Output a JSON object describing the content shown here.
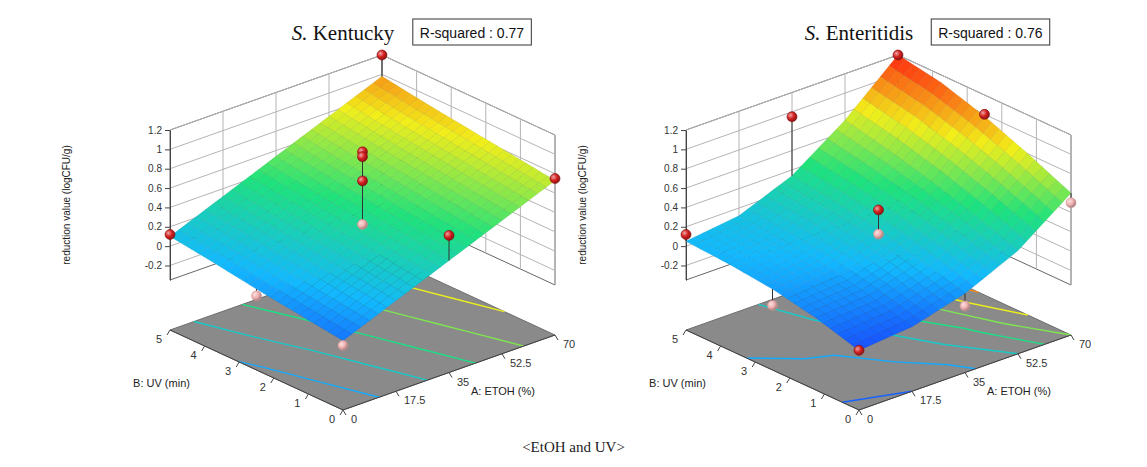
{
  "caption": "<EtOH and UV>",
  "chart_data": [
    {
      "type": "surface",
      "title": "S. Kentucky",
      "annotation": "R-squared : 0.77",
      "x_label": "A: ETOH (%)",
      "y_label": "B: UV (min)",
      "z_label": "reduction value (logCFU/g)",
      "x": [
        0,
        17.5,
        35,
        52.5,
        70
      ],
      "y": [
        0,
        1.25,
        2.5,
        3.75,
        5
      ],
      "z": [
        [
          -0.15,
          0.07,
          0.29,
          0.51,
          0.73
        ],
        [
          -0.09,
          0.13,
          0.35,
          0.57,
          0.79
        ],
        [
          -0.03,
          0.19,
          0.41,
          0.63,
          0.85
        ],
        [
          0.04,
          0.26,
          0.47,
          0.69,
          0.91
        ],
        [
          0.1,
          0.32,
          0.54,
          0.76,
          0.98
        ]
      ],
      "xlim": [
        0,
        70
      ],
      "xticks": [
        0,
        17.5,
        35,
        52.5,
        70
      ],
      "ylim": [
        0,
        5
      ],
      "yticks": [
        0,
        1,
        2,
        3,
        4,
        5
      ],
      "zlim": [
        -0.35,
        1.2
      ],
      "zticks": [
        -0.2,
        0,
        0.2,
        0.4,
        0.6,
        0.8,
        1,
        1.2
      ],
      "grid": true,
      "points": {
        "x": [
          0,
          0,
          0,
          35,
          35,
          35,
          35,
          35,
          70,
          70
        ],
        "y": [
          0,
          2.5,
          5,
          0,
          2.5,
          2.5,
          2.5,
          2.5,
          0,
          5
        ],
        "z": [
          -0.2,
          -0.1,
          0.12,
          0.55,
          1.0,
          0.95,
          0.7,
          0.25,
          0.75,
          1.2
        ],
        "color": "#d41f1f",
        "marker": "sphere"
      }
    },
    {
      "type": "surface",
      "title": "S. Enteritidis",
      "annotation": "R-squared : 0.76",
      "x_label": "A: ETOH (%)",
      "y_label": "B: UV (min)",
      "z_label": "reduction value (logCFU/g)",
      "x": [
        0,
        17.5,
        35,
        52.5,
        70
      ],
      "y": [
        0,
        1.25,
        2.5,
        3.75,
        5
      ],
      "z": [
        [
          -0.25,
          -0.2,
          -0.05,
          0.2,
          0.6
        ],
        [
          -0.12,
          -0.08,
          0.08,
          0.36,
          0.8
        ],
        [
          -0.03,
          0.02,
          0.2,
          0.5,
          0.98
        ],
        [
          0.02,
          0.08,
          0.28,
          0.62,
          1.12
        ],
        [
          0.05,
          0.12,
          0.34,
          0.72,
          1.2
        ]
      ],
      "xlim": [
        0,
        70
      ],
      "xticks": [
        0,
        17.5,
        35,
        52.5,
        70
      ],
      "ylim": [
        0,
        5
      ],
      "yticks": [
        0,
        1,
        2,
        3,
        4,
        5
      ],
      "zlim": [
        -0.35,
        1.2
      ],
      "zticks": [
        -0.2,
        0,
        0.2,
        0.4,
        0.6,
        0.8,
        1,
        1.2
      ],
      "grid": true,
      "points": {
        "x": [
          0,
          0,
          0,
          35,
          35,
          35,
          35,
          70,
          70,
          70
        ],
        "y": [
          0,
          2.5,
          5,
          0,
          2.5,
          2.5,
          5,
          0,
          2.5,
          5
        ],
        "z": [
          -0.25,
          -0.2,
          0.12,
          -0.18,
          0.15,
          0.4,
          0.95,
          0.5,
          1.0,
          1.2
        ],
        "color": "#d41f1f",
        "marker": "sphere"
      }
    }
  ]
}
